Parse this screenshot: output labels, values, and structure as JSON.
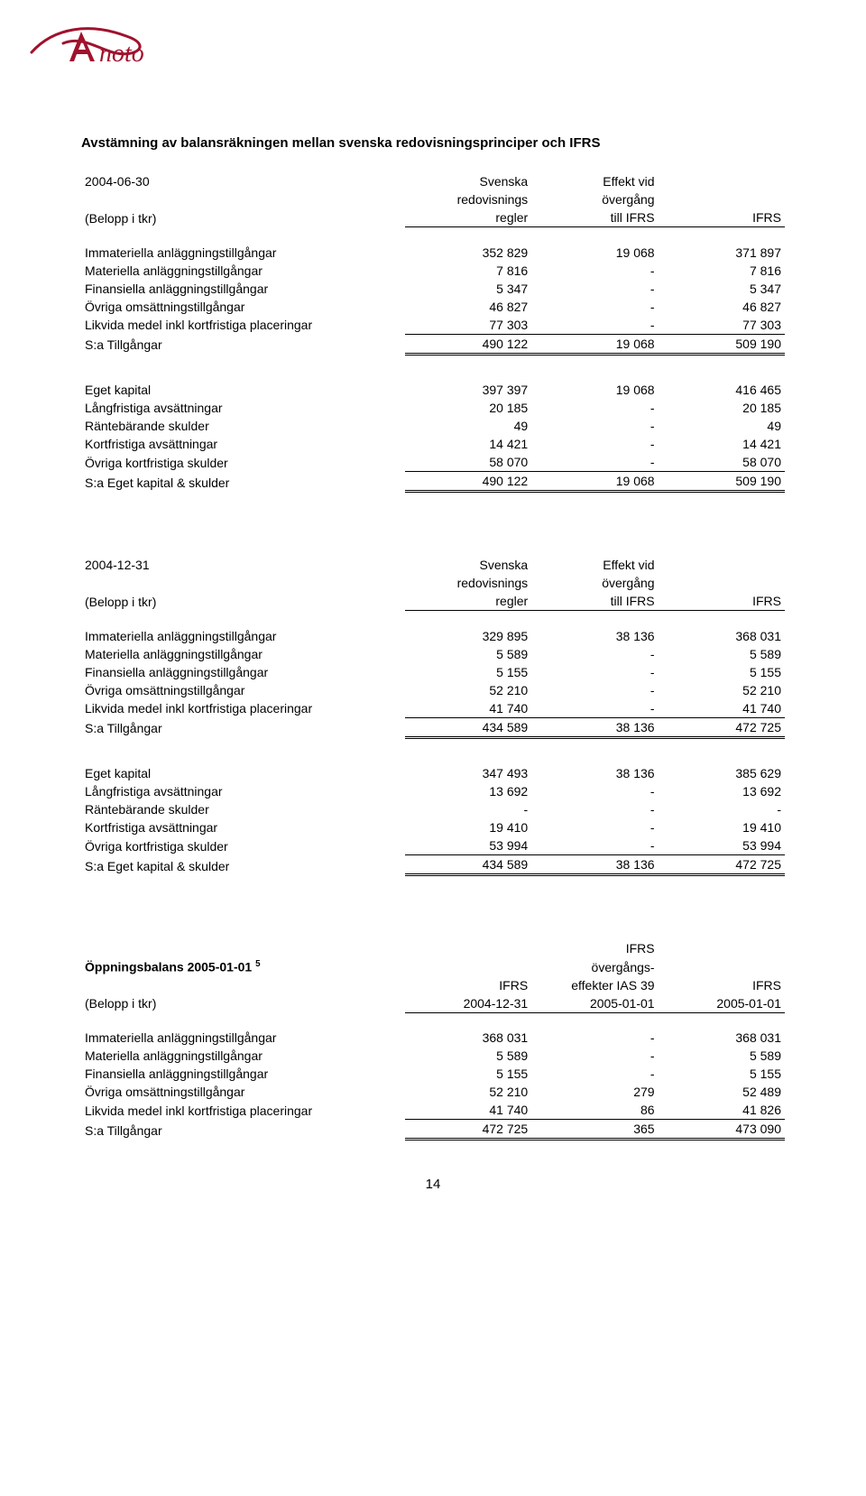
{
  "logo": {
    "color": "#a0122d",
    "text": "Anoto"
  },
  "title": "Avstämning av balansräkningen mellan svenska redovisningsprinciper och IFRS",
  "colors": {
    "text": "#000000",
    "background": "#ffffff",
    "rule": "#000000"
  },
  "pageNumber": "14",
  "tables": [
    {
      "header": {
        "date": "2004-06-30",
        "unit": "(Belopp i tkr)",
        "col1_top": "Svenska",
        "col1_mid": "redovisnings",
        "col1_bot": "regler",
        "col2_top": "Effekt vid",
        "col2_mid": "övergång",
        "col2_bot": "till IFRS",
        "col3_bot": "IFRS"
      },
      "sections": [
        {
          "rows": [
            [
              "Immateriella anläggningstillgångar",
              "352 829",
              "19 068",
              "371 897"
            ],
            [
              "Materiella anläggningstillgångar",
              "7 816",
              "-",
              "7 816"
            ],
            [
              "Finansiella anläggningstillgångar",
              "5 347",
              "-",
              "5 347"
            ],
            [
              "Övriga omsättningstillgångar",
              "46 827",
              "-",
              "46 827"
            ],
            [
              "Likvida medel inkl kortfristiga placeringar",
              "77 303",
              "-",
              "77 303"
            ]
          ],
          "total": [
            "S:a Tillgångar",
            "490 122",
            "19 068",
            "509 190"
          ]
        },
        {
          "rows": [
            [
              "Eget kapital",
              "397 397",
              "19 068",
              "416 465"
            ],
            [
              "Långfristiga avsättningar",
              "20 185",
              "-",
              "20 185"
            ],
            [
              "Räntebärande skulder",
              "49",
              "-",
              "49"
            ],
            [
              "Kortfristiga avsättningar",
              "14 421",
              "-",
              "14 421"
            ],
            [
              "Övriga kortfristiga skulder",
              "58 070",
              "-",
              "58 070"
            ]
          ],
          "total": [
            "S:a Eget kapital & skulder",
            "490 122",
            "19 068",
            "509 190"
          ]
        }
      ]
    },
    {
      "header": {
        "date": "2004-12-31",
        "unit": "(Belopp i tkr)",
        "col1_top": "Svenska",
        "col1_mid": "redovisnings",
        "col1_bot": "regler",
        "col2_top": "Effekt vid",
        "col2_mid": "övergång",
        "col2_bot": "till IFRS",
        "col3_bot": "IFRS"
      },
      "sections": [
        {
          "rows": [
            [
              "Immateriella anläggningstillgångar",
              "329 895",
              "38 136",
              "368 031"
            ],
            [
              "Materiella anläggningstillgångar",
              "5 589",
              "-",
              "5 589"
            ],
            [
              "Finansiella anläggningstillgångar",
              "5 155",
              "-",
              "5 155"
            ],
            [
              "Övriga omsättningstillgångar",
              "52 210",
              "-",
              "52 210"
            ],
            [
              "Likvida medel inkl kortfristiga placeringar",
              "41 740",
              "-",
              "41 740"
            ]
          ],
          "total": [
            "S:a Tillgångar",
            "434 589",
            "38 136",
            "472 725"
          ]
        },
        {
          "rows": [
            [
              "Eget kapital",
              "347 493",
              "38 136",
              "385 629"
            ],
            [
              "Långfristiga avsättningar",
              "13 692",
              "-",
              "13 692"
            ],
            [
              "Räntebärande skulder",
              "-",
              "-",
              "-"
            ],
            [
              "Kortfristiga avsättningar",
              "19 410",
              "-",
              "19 410"
            ],
            [
              "Övriga kortfristiga skulder",
              "53 994",
              "-",
              "53 994"
            ]
          ],
          "total": [
            "S:a Eget kapital & skulder",
            "434 589",
            "38 136",
            "472 725"
          ]
        }
      ]
    },
    {
      "header3": {
        "title": "Öppningsbalans 2005-01-01",
        "sup": "5",
        "unit": "(Belopp i tkr)",
        "col1_bot1": "IFRS",
        "col1_bot2": "2004-12-31",
        "col2_top": "IFRS",
        "col2_mid1": "övergångs-",
        "col2_mid2": "effekter IAS 39",
        "col2_bot": "2005-01-01",
        "col3_top": "IFRS",
        "col3_bot": "2005-01-01"
      },
      "sections": [
        {
          "rows": [
            [
              "Immateriella anläggningstillgångar",
              "368 031",
              "-",
              "368 031"
            ],
            [
              "Materiella anläggningstillgångar",
              "5 589",
              "-",
              "5 589"
            ],
            [
              "Finansiella anläggningstillgångar",
              "5 155",
              "-",
              "5 155"
            ],
            [
              "Övriga omsättningstillgångar",
              "52 210",
              "279",
              "52 489"
            ],
            [
              "Likvida medel inkl kortfristiga placeringar",
              "41 740",
              "86",
              "41 826"
            ]
          ],
          "total": [
            "S:a Tillgångar",
            "472 725",
            "365",
            "473 090"
          ]
        }
      ]
    }
  ]
}
